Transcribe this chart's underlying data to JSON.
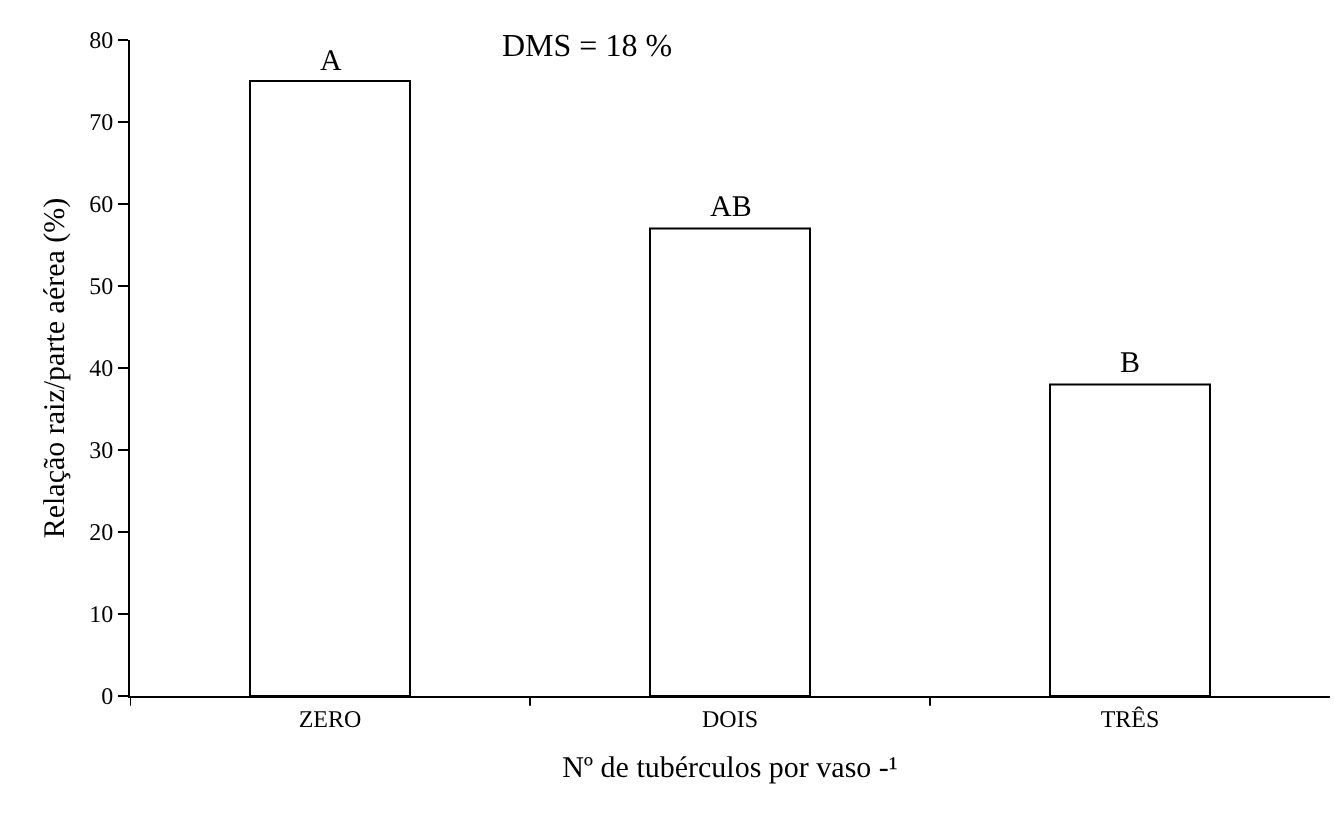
{
  "chart_data": {
    "type": "bar",
    "categories": [
      "ZERO",
      "DOIS",
      "TRÊS"
    ],
    "values": [
      75,
      57,
      38
    ],
    "color": "#ffffff",
    "xlabel": "Nº de tubérculos por vaso -¹",
    "ylabel": "Relação raiz/parte aérea (%)",
    "ylim": [
      0,
      80
    ],
    "yticks": [
      0,
      10,
      20,
      30,
      40,
      50,
      60,
      70,
      80
    ],
    "grid": false,
    "legend": false,
    "annotations": [
      {
        "text": "A",
        "x": "ZERO",
        "y": 75
      },
      {
        "text": "AB",
        "x": "DOIS",
        "y": 57
      },
      {
        "text": "B",
        "x": "TRÊS",
        "y": 38
      },
      "DMS = 18 %"
    ]
  }
}
